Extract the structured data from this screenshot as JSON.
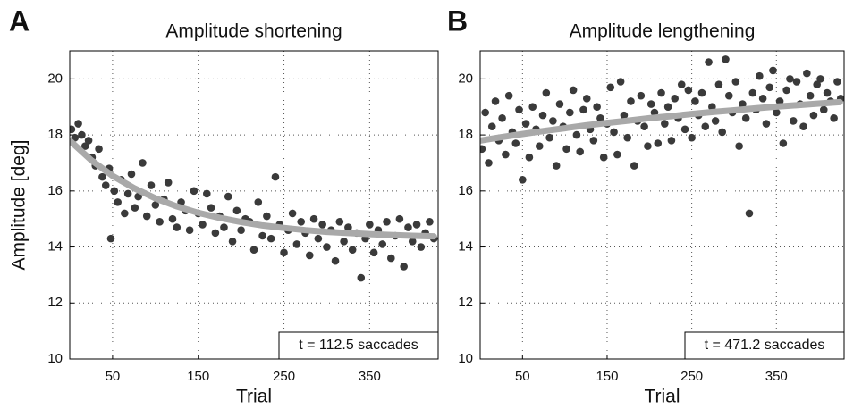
{
  "chart_data": [
    {
      "type": "scatter",
      "panel_label": "A",
      "title": "Amplitude shortening",
      "xlabel": "Trial",
      "ylabel": "Amplitude [deg]",
      "annotation": "t = 112.5 saccades",
      "xlim": [
        0,
        430
      ],
      "ylim": [
        10,
        21
      ],
      "xticks": [
        50,
        150,
        250,
        350
      ],
      "yticks": [
        10,
        12,
        14,
        16,
        18,
        20
      ],
      "grid": true,
      "series": [
        {
          "mode": "markers",
          "color": "#3a3a3a",
          "x": [
            2,
            6,
            10,
            14,
            18,
            22,
            26,
            30,
            34,
            38,
            42,
            46,
            48,
            52,
            56,
            60,
            64,
            68,
            72,
            76,
            80,
            85,
            90,
            95,
            100,
            105,
            110,
            115,
            120,
            125,
            130,
            135,
            140,
            145,
            150,
            155,
            160,
            165,
            170,
            175,
            180,
            185,
            190,
            195,
            200,
            205,
            210,
            215,
            220,
            225,
            230,
            235,
            240,
            245,
            250,
            255,
            260,
            265,
            270,
            275,
            280,
            285,
            290,
            295,
            300,
            305,
            310,
            315,
            320,
            325,
            330,
            335,
            340,
            345,
            350,
            355,
            360,
            365,
            370,
            375,
            380,
            385,
            390,
            395,
            400,
            405,
            410,
            415,
            420,
            425
          ],
          "values": [
            18.2,
            17.9,
            18.4,
            18.0,
            17.6,
            17.8,
            17.2,
            16.9,
            17.5,
            16.5,
            16.2,
            16.8,
            14.3,
            16.0,
            15.6,
            16.4,
            15.2,
            15.9,
            16.6,
            15.4,
            15.8,
            17.0,
            15.1,
            16.2,
            15.5,
            14.9,
            15.7,
            16.3,
            15.0,
            14.7,
            15.6,
            15.3,
            14.6,
            16.0,
            15.2,
            14.8,
            15.9,
            15.4,
            14.5,
            15.1,
            14.7,
            15.8,
            14.2,
            15.3,
            14.6,
            15.0,
            14.9,
            13.9,
            15.6,
            14.4,
            15.1,
            14.3,
            16.5,
            14.8,
            13.8,
            14.6,
            15.2,
            14.1,
            14.9,
            14.5,
            13.7,
            15.0,
            14.3,
            14.8,
            14.0,
            14.6,
            13.5,
            14.9,
            14.2,
            14.7,
            13.9,
            14.5,
            12.9,
            14.3,
            14.8,
            13.8,
            14.6,
            14.1,
            14.9,
            13.6,
            14.4,
            15.0,
            13.3,
            14.7,
            14.2,
            14.8,
            14.0,
            14.5,
            14.9,
            14.3
          ]
        },
        {
          "mode": "line",
          "color": "#a9a9a9",
          "x": [
            0,
            25,
            50,
            75,
            100,
            125,
            150,
            175,
            200,
            225,
            250,
            275,
            300,
            325,
            350,
            375,
            400,
            425
          ],
          "values": [
            17.8,
            17.1,
            16.54,
            16.1,
            15.74,
            15.45,
            15.22,
            15.04,
            14.89,
            14.77,
            14.68,
            14.6,
            14.54,
            14.5,
            14.46,
            14.43,
            14.4,
            14.38
          ]
        }
      ]
    },
    {
      "type": "scatter",
      "panel_label": "B",
      "title": "Amplitude lengthening",
      "xlabel": "Trial",
      "annotation": "t = 471.2 saccades",
      "xlim": [
        0,
        430
      ],
      "ylim": [
        10,
        21
      ],
      "xticks": [
        50,
        150,
        250,
        350
      ],
      "yticks": [
        10,
        12,
        14,
        16,
        18,
        20
      ],
      "grid": true,
      "series": [
        {
          "mode": "markers",
          "color": "#3a3a3a",
          "x": [
            2,
            6,
            10,
            14,
            18,
            22,
            26,
            30,
            34,
            38,
            42,
            46,
            50,
            54,
            58,
            62,
            66,
            70,
            74,
            78,
            82,
            86,
            90,
            94,
            98,
            102,
            106,
            110,
            114,
            118,
            122,
            126,
            130,
            134,
            138,
            142,
            146,
            150,
            154,
            158,
            162,
            166,
            170,
            174,
            178,
            182,
            186,
            190,
            194,
            198,
            202,
            206,
            210,
            214,
            218,
            222,
            226,
            230,
            234,
            238,
            242,
            246,
            250,
            254,
            258,
            262,
            266,
            270,
            274,
            278,
            282,
            286,
            290,
            294,
            298,
            302,
            306,
            310,
            314,
            318,
            322,
            326,
            330,
            334,
            338,
            342,
            346,
            350,
            354,
            358,
            362,
            366,
            370,
            374,
            378,
            382,
            386,
            390,
            394,
            398,
            402,
            406,
            410,
            414,
            418,
            422,
            426
          ],
          "values": [
            17.5,
            18.8,
            17.0,
            18.3,
            19.2,
            17.8,
            18.6,
            17.3,
            19.4,
            18.1,
            17.7,
            18.9,
            16.4,
            18.4,
            17.2,
            19.0,
            18.2,
            17.6,
            18.7,
            19.5,
            17.9,
            18.5,
            16.9,
            19.1,
            18.3,
            17.5,
            18.8,
            19.6,
            18.0,
            17.4,
            18.9,
            19.3,
            18.2,
            17.8,
            19.0,
            18.6,
            17.2,
            18.4,
            19.7,
            18.1,
            17.3,
            19.9,
            18.7,
            17.9,
            19.2,
            16.9,
            18.5,
            19.4,
            18.3,
            17.6,
            19.1,
            18.8,
            17.7,
            19.5,
            18.4,
            19.0,
            17.8,
            19.3,
            18.6,
            19.8,
            18.2,
            19.6,
            17.9,
            19.2,
            18.7,
            19.5,
            18.3,
            20.6,
            19.0,
            18.5,
            19.8,
            18.1,
            20.7,
            19.4,
            18.8,
            19.9,
            17.6,
            19.1,
            18.6,
            15.2,
            19.5,
            18.9,
            20.1,
            19.3,
            18.4,
            19.7,
            20.3,
            18.8,
            19.2,
            17.7,
            19.6,
            20.0,
            18.5,
            19.9,
            19.1,
            18.3,
            20.2,
            19.4,
            18.7,
            19.8,
            20.0,
            18.9,
            19.5,
            19.2,
            18.6,
            19.9,
            19.3
          ]
        },
        {
          "mode": "line",
          "color": "#a9a9a9",
          "x": [
            0,
            25,
            50,
            75,
            100,
            125,
            150,
            175,
            200,
            225,
            250,
            275,
            300,
            325,
            350,
            375,
            400,
            425
          ],
          "values": [
            17.8,
            17.92,
            18.03,
            18.14,
            18.24,
            18.34,
            18.43,
            18.51,
            18.6,
            18.67,
            18.75,
            18.82,
            18.88,
            18.95,
            19.01,
            19.06,
            19.12,
            19.17
          ]
        }
      ]
    }
  ]
}
